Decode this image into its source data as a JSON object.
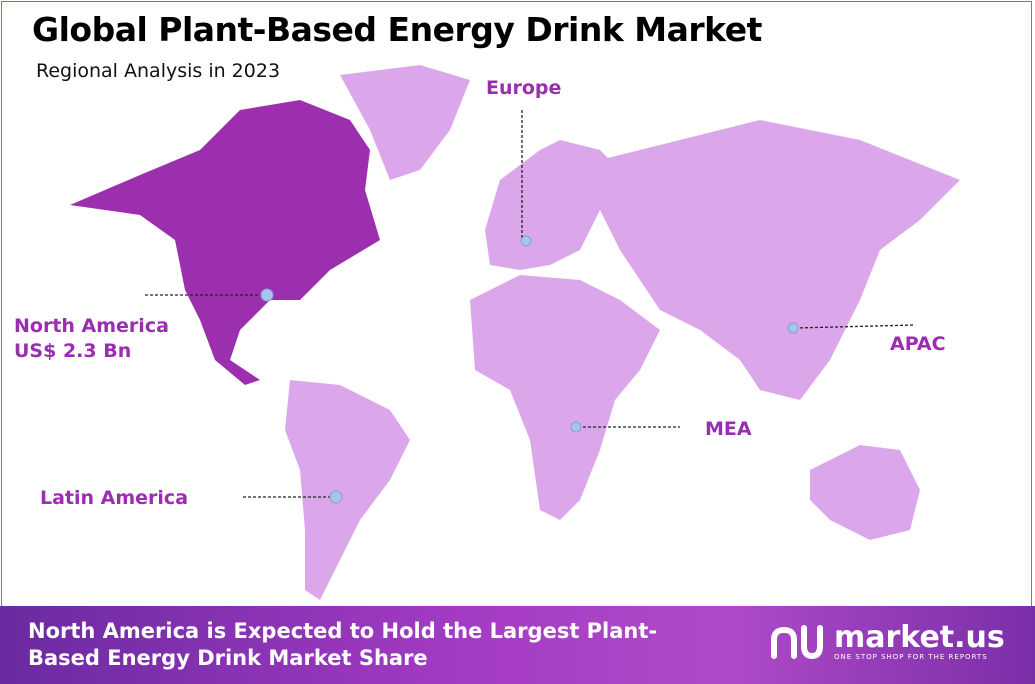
{
  "header": {
    "title": "Global Plant-Based Energy Drink Market",
    "subtitle": "Regional Analysis in 2023"
  },
  "regions": [
    {
      "name": "North America",
      "value": "US$ 2.3 Bn",
      "highlighted": true
    },
    {
      "name": "Europe"
    },
    {
      "name": "APAC"
    },
    {
      "name": "MEA"
    },
    {
      "name": "Latin America"
    }
  ],
  "colors": {
    "highlight": "#9b2fae",
    "land": "#dca7ea",
    "label": "#9a2db0",
    "marker": "#a9c4ec"
  },
  "banner": {
    "text": "North America is Expected to Hold the Largest Plant-Based Energy Drink Market Share",
    "logo_name": "market.us",
    "logo_tagline": "ONE STOP SHOP FOR THE REPORTS"
  }
}
